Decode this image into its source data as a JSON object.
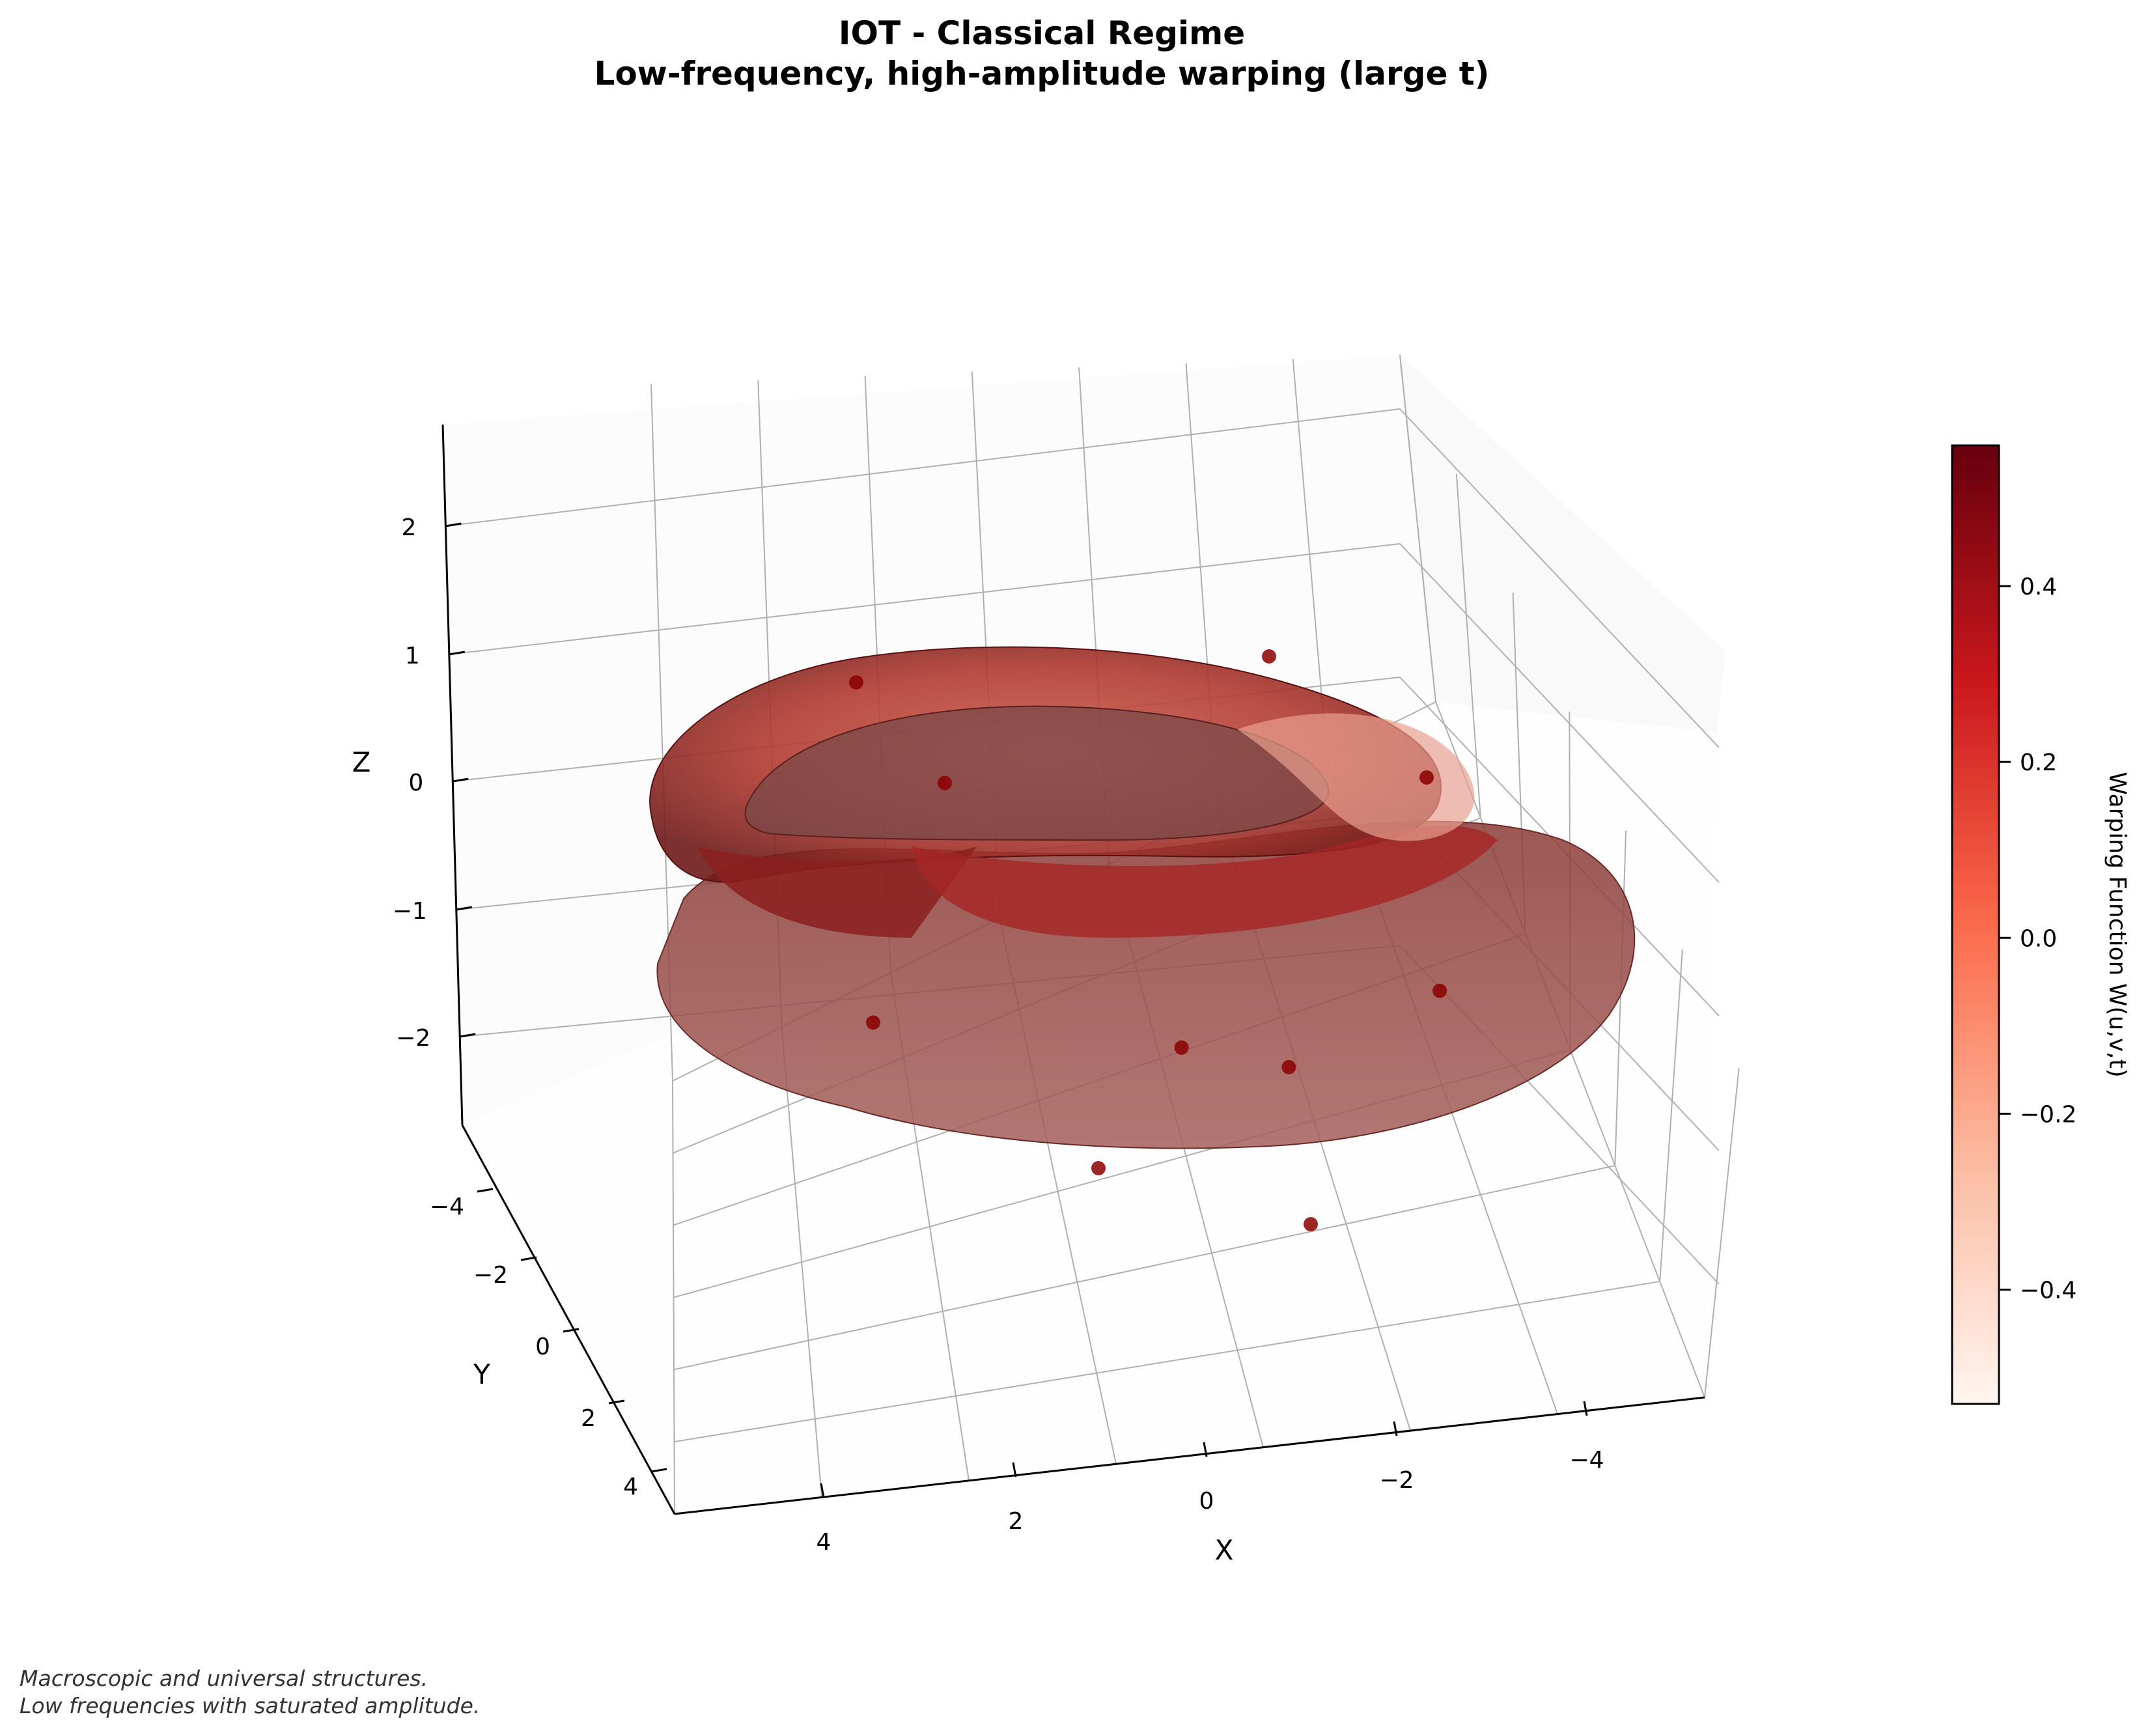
{
  "chart_data": {
    "type": "surface3d",
    "title": "IOT - Classical Regime",
    "subtitle": "Low-frequency, high-amplitude warping (large t)",
    "xlabel": "X",
    "ylabel": "Y",
    "zlabel": "Z",
    "xlim": [
      -5.5,
      5.5
    ],
    "ylim": [
      -5,
      5
    ],
    "zlim": [
      -2.8,
      2.7
    ],
    "xticks": [
      "4",
      "2",
      "0",
      "−2",
      "−4"
    ],
    "yticks": [
      "−4",
      "−2",
      "0",
      "2",
      "4"
    ],
    "zticks": [
      "2",
      "1",
      "0",
      "−1",
      "−2"
    ],
    "grid": true,
    "surface": {
      "shape": "warped torus",
      "major_radius": 3.5,
      "minor_radius": 1.3,
      "colormap": "Reds",
      "alpha": 0.7
    },
    "points": [
      {
        "x": 2.5,
        "y": -2.5,
        "z": 0.8
      },
      {
        "x": -3.0,
        "y": -3.0,
        "z": 0.4
      },
      {
        "x": 3.8,
        "y": 1.0,
        "z": -1.2
      },
      {
        "x": 2.0,
        "y": 3.5,
        "z": -2.1
      },
      {
        "x": -0.5,
        "y": 4.0,
        "z": -2.7
      },
      {
        "x": -3.5,
        "y": 0.5,
        "z": 0.0
      },
      {
        "x": -2.8,
        "y": 2.5,
        "z": -1.3
      },
      {
        "x": 0.2,
        "y": 1.8,
        "z": -1.6
      },
      {
        "x": 1.8,
        "y": -1.5,
        "z": 0.1
      },
      {
        "x": -1.0,
        "y": 2.2,
        "z": -1.8
      }
    ],
    "colorbar": {
      "label": "Warping Function W(u,v,t)",
      "range": [
        -0.53,
        0.56
      ],
      "ticks": [
        "0.4",
        "0.2",
        "0.0",
        "−0.2",
        "−0.4"
      ],
      "tick_values": [
        0.4,
        0.2,
        0.0,
        -0.2,
        -0.4
      ]
    }
  },
  "caption": {
    "line1": "Macroscopic and universal structures.",
    "line2": "Low frequencies with saturated amplitude."
  }
}
